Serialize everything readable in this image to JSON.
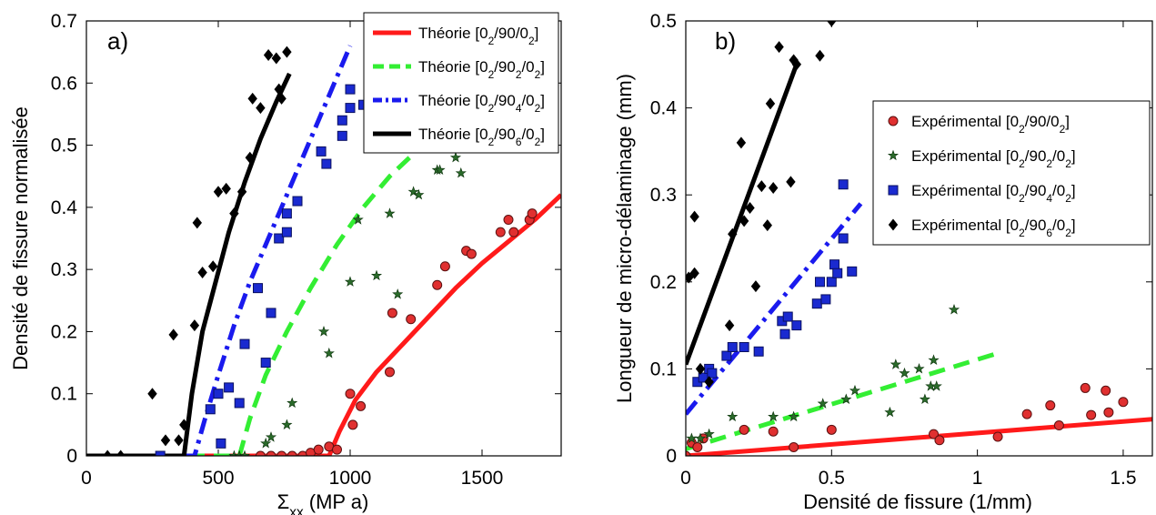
{
  "chart_data": [
    {
      "type": "line",
      "panel_label": "a)",
      "xlabel": "Σxx (MP a)",
      "xlabel_main": "Σ",
      "xlabel_sub": "xx",
      "xlabel_rest": " (MP a)",
      "ylabel": "Densité de fissure normalisée",
      "xlim": [
        0,
        1800
      ],
      "ylim": [
        0,
        0.7
      ],
      "xticks": [
        0,
        500,
        1000,
        1500
      ],
      "yticks": [
        0,
        0.1,
        0.2,
        0.3,
        0.4,
        0.5,
        0.6,
        0.7
      ],
      "legend_position": "top-right",
      "series": [
        {
          "name": "Théorie [02/90/02]",
          "legend_prefix": "Théorie",
          "legend_sub": "90",
          "color": "#ff1a1a",
          "style": "solid",
          "x": [
            0,
            920,
            960,
            1020,
            1100,
            1200,
            1300,
            1400,
            1500,
            1600,
            1700,
            1800
          ],
          "y": [
            0,
            0,
            0.04,
            0.09,
            0.135,
            0.18,
            0.225,
            0.27,
            0.31,
            0.345,
            0.38,
            0.42
          ]
        },
        {
          "name": "Théorie [02/902/02]",
          "legend_prefix": "Théorie",
          "legend_sub": "90₂",
          "color": "#33ee33",
          "style": "dash",
          "x": [
            0,
            580,
            620,
            680,
            760,
            850,
            950,
            1050,
            1150,
            1250
          ],
          "y": [
            0,
            0,
            0.06,
            0.13,
            0.2,
            0.27,
            0.34,
            0.4,
            0.45,
            0.49
          ]
        },
        {
          "name": "Théorie [02/904/02]",
          "legend_prefix": "Théorie",
          "legend_sub": "90₄",
          "color": "#1a1aee",
          "style": "dashdot",
          "x": [
            0,
            410,
            450,
            500,
            560,
            620,
            700,
            780,
            860,
            940,
            1000
          ],
          "y": [
            0,
            0,
            0.06,
            0.13,
            0.21,
            0.28,
            0.36,
            0.44,
            0.52,
            0.6,
            0.66
          ]
        },
        {
          "name": "Théorie [02/906/02]",
          "legend_prefix": "Théorie",
          "legend_sub": "90₆",
          "color": "#000000",
          "style": "solid",
          "x": [
            0,
            370,
            400,
            440,
            490,
            540,
            600,
            660,
            720,
            770
          ],
          "y": [
            0,
            0,
            0.1,
            0.2,
            0.28,
            0.36,
            0.44,
            0.51,
            0.57,
            0.615
          ]
        }
      ],
      "scatter": [
        {
          "marker": "circle",
          "color": "#e03030",
          "points": [
            [
              660,
              0
            ],
            [
              700,
              0
            ],
            [
              740,
              0
            ],
            [
              780,
              0
            ],
            [
              820,
              0
            ],
            [
              850,
              0.005
            ],
            [
              880,
              0.01
            ],
            [
              920,
              0.015
            ],
            [
              950,
              0.01
            ],
            [
              1000,
              0.1
            ],
            [
              1010,
              0.05
            ],
            [
              1040,
              0.08
            ],
            [
              1150,
              0.135
            ],
            [
              1160,
              0.23
            ],
            [
              1230,
              0.22
            ],
            [
              1330,
              0.275
            ],
            [
              1360,
              0.305
            ],
            [
              1440,
              0.33
            ],
            [
              1460,
              0.325
            ],
            [
              1570,
              0.36
            ],
            [
              1600,
              0.38
            ],
            [
              1620,
              0.36
            ],
            [
              1680,
              0.38
            ],
            [
              1690,
              0.39
            ]
          ]
        },
        {
          "marker": "star",
          "color": "#2a6a2a",
          "points": [
            [
              560,
              0
            ],
            [
              580,
              0
            ],
            [
              600,
              0
            ],
            [
              680,
              0.02
            ],
            [
              700,
              0.03
            ],
            [
              760,
              0.05
            ],
            [
              780,
              0.085
            ],
            [
              900,
              0.2
            ],
            [
              920,
              0.165
            ],
            [
              1000,
              0.28
            ],
            [
              1030,
              0.38
            ],
            [
              1100,
              0.29
            ],
            [
              1150,
              0.39
            ],
            [
              1180,
              0.26
            ],
            [
              1240,
              0.425
            ],
            [
              1260,
              0.42
            ],
            [
              1330,
              0.46
            ],
            [
              1340,
              0.46
            ],
            [
              1400,
              0.48
            ],
            [
              1420,
              0.455
            ]
          ]
        },
        {
          "marker": "square",
          "color": "#1a2ad0",
          "points": [
            [
              280,
              0
            ],
            [
              470,
              0.075
            ],
            [
              500,
              0.1
            ],
            [
              510,
              0.02
            ],
            [
              540,
              0.11
            ],
            [
              580,
              0.085
            ],
            [
              600,
              0.18
            ],
            [
              650,
              0.27
            ],
            [
              680,
              0.15
            ],
            [
              700,
              0.23
            ],
            [
              730,
              0.35
            ],
            [
              760,
              0.36
            ],
            [
              760,
              0.39
            ],
            [
              800,
              0.41
            ],
            [
              890,
              0.49
            ],
            [
              910,
              0.47
            ],
            [
              970,
              0.54
            ],
            [
              970,
              0.515
            ],
            [
              1000,
              0.56
            ],
            [
              1000,
              0.59
            ],
            [
              1050,
              0.565
            ],
            [
              1090,
              0.565
            ]
          ]
        },
        {
          "marker": "diamond",
          "color": "#000000",
          "points": [
            [
              80,
              0
            ],
            [
              130,
              0
            ],
            [
              250,
              0.1
            ],
            [
              300,
              0.025
            ],
            [
              330,
              0.195
            ],
            [
              350,
              0.025
            ],
            [
              370,
              0.05
            ],
            [
              410,
              0.21
            ],
            [
              420,
              0.375
            ],
            [
              440,
              0.295
            ],
            [
              480,
              0.305
            ],
            [
              500,
              0.425
            ],
            [
              530,
              0.43
            ],
            [
              560,
              0.39
            ],
            [
              590,
              0.425
            ],
            [
              620,
              0.48
            ],
            [
              630,
              0.575
            ],
            [
              660,
              0.56
            ],
            [
              690,
              0.645
            ],
            [
              720,
              0.64
            ],
            [
              730,
              0.59
            ],
            [
              740,
              0.575
            ],
            [
              760,
              0.65
            ]
          ]
        }
      ]
    },
    {
      "type": "line",
      "panel_label": "b)",
      "xlabel": "Densité de fissure (1/mm)",
      "ylabel": "Longueur de micro-délaminage (mm)",
      "xlim": [
        0,
        1.6
      ],
      "ylim": [
        0,
        0.5
      ],
      "xticks": [
        0,
        0.5,
        1,
        1.5
      ],
      "xtick_labels": [
        "0",
        "0.5",
        "1",
        "1.5"
      ],
      "yticks": [
        0,
        0.1,
        0.2,
        0.3,
        0.4,
        0.5
      ],
      "ytick_labels": [
        "0",
        "0.1",
        "0.2",
        "0.3",
        "0.4",
        "0.5"
      ],
      "legend_position": "right",
      "series": [
        {
          "name": "Théorie [02/90/02]",
          "color": "#ff1a1a",
          "style": "solid",
          "x": [
            0,
            1.6
          ],
          "y": [
            0,
            0.042
          ]
        },
        {
          "name": "Théorie [02/902/02]",
          "color": "#33ee33",
          "style": "dash",
          "x": [
            0,
            1.07
          ],
          "y": [
            0.008,
            0.118
          ]
        },
        {
          "name": "Théorie [02/904/02]",
          "color": "#1a1aee",
          "style": "dashdot",
          "x": [
            0,
            0.6
          ],
          "y": [
            0.048,
            0.29
          ]
        },
        {
          "name": "Théorie [02/906/02]",
          "color": "#000000",
          "style": "solid",
          "x": [
            0,
            0.38
          ],
          "y": [
            0.105,
            0.45
          ]
        }
      ],
      "scatter": [
        {
          "name": "Expérimental [02/90/02]",
          "legend_prefix": "Expérimental",
          "legend_sub": "90",
          "marker": "circle",
          "color": "#e03030",
          "points": [
            [
              0,
              0
            ],
            [
              0.02,
              0.015
            ],
            [
              0.04,
              0.01
            ],
            [
              0.06,
              0.02
            ],
            [
              0.2,
              0.03
            ],
            [
              0.3,
              0.028
            ],
            [
              0.37,
              0.01
            ],
            [
              0.5,
              0.03
            ],
            [
              0.85,
              0.025
            ],
            [
              0.87,
              0.018
            ],
            [
              1.07,
              0.022
            ],
            [
              1.17,
              0.048
            ],
            [
              1.25,
              0.058
            ],
            [
              1.28,
              0.035
            ],
            [
              1.37,
              0.078
            ],
            [
              1.39,
              0.047
            ],
            [
              1.44,
              0.075
            ],
            [
              1.45,
              0.05
            ],
            [
              1.5,
              0.062
            ]
          ]
        },
        {
          "name": "Expérimental [02/902/02]",
          "legend_prefix": "Expérimental",
          "legend_sub": "90₂",
          "marker": "star",
          "color": "#2a6a2a",
          "points": [
            [
              0.02,
              0.02
            ],
            [
              0.05,
              0.02
            ],
            [
              0.08,
              0.025
            ],
            [
              0.16,
              0.045
            ],
            [
              0.3,
              0.045
            ],
            [
              0.37,
              0.045
            ],
            [
              0.47,
              0.06
            ],
            [
              0.55,
              0.065
            ],
            [
              0.58,
              0.075
            ],
            [
              0.7,
              0.05
            ],
            [
              0.72,
              0.105
            ],
            [
              0.75,
              0.095
            ],
            [
              0.8,
              0.1
            ],
            [
              0.82,
              0.065
            ],
            [
              0.84,
              0.08
            ],
            [
              0.85,
              0.11
            ],
            [
              0.86,
              0.08
            ],
            [
              0.92,
              0.168
            ]
          ]
        },
        {
          "name": "Expérimental [02/904/02]",
          "legend_prefix": "Expérimental",
          "legend_sub": "90₄",
          "marker": "square",
          "color": "#1a2ad0",
          "points": [
            [
              0.04,
              0.085
            ],
            [
              0.06,
              0.09
            ],
            [
              0.08,
              0.1
            ],
            [
              0.09,
              0.095
            ],
            [
              0.14,
              0.115
            ],
            [
              0.16,
              0.125
            ],
            [
              0.2,
              0.125
            ],
            [
              0.25,
              0.12
            ],
            [
              0.33,
              0.155
            ],
            [
              0.34,
              0.14
            ],
            [
              0.35,
              0.16
            ],
            [
              0.38,
              0.15
            ],
            [
              0.45,
              0.175
            ],
            [
              0.46,
              0.2
            ],
            [
              0.48,
              0.18
            ],
            [
              0.5,
              0.2
            ],
            [
              0.51,
              0.22
            ],
            [
              0.52,
              0.21
            ],
            [
              0.54,
              0.25
            ],
            [
              0.54,
              0.312
            ],
            [
              0.57,
              0.212
            ]
          ]
        },
        {
          "name": "Expérimental [02/906/02]",
          "legend_prefix": "Expérimental",
          "legend_sub": "90₆",
          "marker": "diamond",
          "color": "#000000",
          "points": [
            [
              0.01,
              0.205
            ],
            [
              0.03,
              0.21
            ],
            [
              0.03,
              0.275
            ],
            [
              0.05,
              0.1
            ],
            [
              0.08,
              0.085
            ],
            [
              0.15,
              0.15
            ],
            [
              0.16,
              0.255
            ],
            [
              0.19,
              0.36
            ],
            [
              0.2,
              0.27
            ],
            [
              0.22,
              0.285
            ],
            [
              0.24,
              0.195
            ],
            [
              0.26,
              0.31
            ],
            [
              0.28,
              0.265
            ],
            [
              0.29,
              0.405
            ],
            [
              0.3,
              0.308
            ],
            [
              0.32,
              0.47
            ],
            [
              0.36,
              0.315
            ],
            [
              0.37,
              0.455
            ],
            [
              0.38,
              0.45
            ],
            [
              0.46,
              0.46
            ],
            [
              0.5,
              0.5
            ]
          ]
        }
      ]
    }
  ]
}
